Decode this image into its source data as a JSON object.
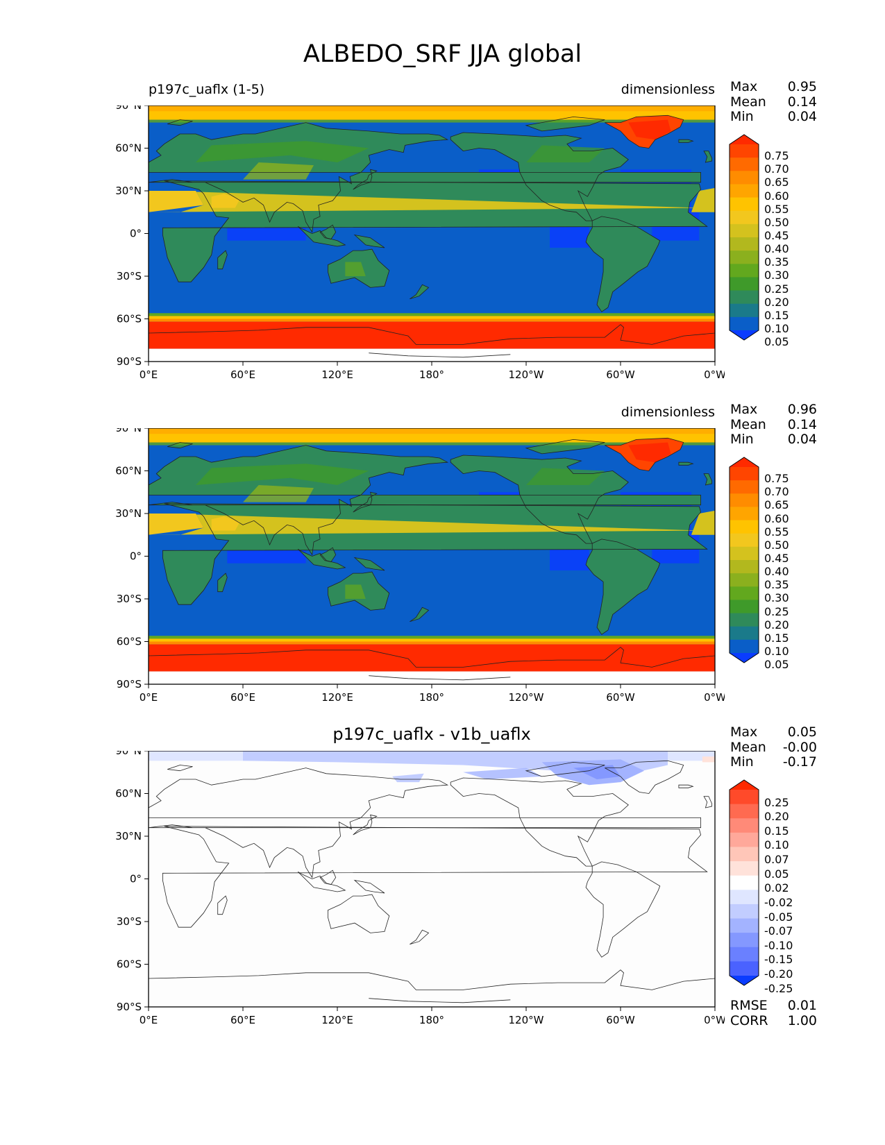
{
  "figure": {
    "title": "ALBEDO_SRF JJA global"
  },
  "axis_ticks": {
    "y": [
      "90°N",
      "60°N",
      "30°N",
      "0°",
      "30°S",
      "60°S",
      "90°S"
    ],
    "x": [
      "0°E",
      "60°E",
      "120°E",
      "180°",
      "120°W",
      "60°W",
      "0°W"
    ]
  },
  "panels": [
    {
      "left_title": "p197c_uaflx (1-5)",
      "center_title": "",
      "right_title": "dimensionless",
      "stats": {
        "max_label": "Max",
        "max": "0.95",
        "mean_label": "Mean",
        "mean": "0.14",
        "min_label": "Min",
        "min": "0.04"
      },
      "colorbar": {
        "labels": [
          "0.75",
          "0.70",
          "0.65",
          "0.60",
          "0.55",
          "0.50",
          "0.45",
          "0.40",
          "0.35",
          "0.30",
          "0.25",
          "0.20",
          "0.15",
          "0.10",
          "0.05"
        ],
        "colors_top_to_bottom": [
          "#ff2a00",
          "#ff4500",
          "#ff6a00",
          "#ff8c00",
          "#ffa500",
          "#ffc300",
          "#f2c71e",
          "#d4c21e",
          "#b2b81e",
          "#8bb01e",
          "#62a81e",
          "#3f9a2a",
          "#2f8a5a",
          "#1a7a8a",
          "#0a5ec8",
          "#0a3cff"
        ]
      }
    },
    {
      "left_title": "",
      "center_title": "",
      "right_title": "dimensionless",
      "stats": {
        "max_label": "Max",
        "max": "0.96",
        "mean_label": "Mean",
        "mean": "0.14",
        "min_label": "Min",
        "min": "0.04"
      },
      "colorbar": {
        "labels": [
          "0.75",
          "0.70",
          "0.65",
          "0.60",
          "0.55",
          "0.50",
          "0.45",
          "0.40",
          "0.35",
          "0.30",
          "0.25",
          "0.20",
          "0.15",
          "0.10",
          "0.05"
        ],
        "colors_top_to_bottom": [
          "#ff2a00",
          "#ff4500",
          "#ff6a00",
          "#ff8c00",
          "#ffa500",
          "#ffc300",
          "#f2c71e",
          "#d4c21e",
          "#b2b81e",
          "#8bb01e",
          "#62a81e",
          "#3f9a2a",
          "#2f8a5a",
          "#1a7a8a",
          "#0a5ec8",
          "#0a3cff"
        ]
      }
    },
    {
      "left_title": "",
      "center_title": "p197c_uaflx - v1b_uaflx",
      "right_title": "",
      "stats": {
        "max_label": "Max",
        "max": "0.05",
        "mean_label": "Mean",
        "mean": "-0.00",
        "min_label": "Min",
        "min": "-0.17"
      },
      "extra_stats": {
        "rmse_label": "RMSE",
        "rmse": "0.01",
        "corr_label": "CORR",
        "corr": "1.00"
      },
      "colorbar": {
        "labels": [
          "0.25",
          "0.20",
          "0.15",
          "0.10",
          "0.07",
          "0.05",
          "0.02",
          "-0.02",
          "-0.05",
          "-0.07",
          "-0.10",
          "-0.15",
          "-0.20",
          "-0.25"
        ],
        "colors_top_to_bottom": [
          "#ff2a00",
          "#ff4a2a",
          "#ff6a50",
          "#ff8a78",
          "#ffa89a",
          "#ffc6b8",
          "#ffe2da",
          "#ffffff",
          "#dfe6ff",
          "#c2cdff",
          "#a3b3ff",
          "#8498ff",
          "#6a80ff",
          "#4a62ff",
          "#0a3cff"
        ]
      }
    }
  ],
  "chart_data": [
    {
      "type": "heatmap",
      "title": "p197c_uaflx (1-5)",
      "units": "dimensionless",
      "xlim_deg": [
        0,
        360
      ],
      "ylim_deg": [
        -90,
        90
      ],
      "stats": {
        "max": 0.95,
        "mean": 0.14,
        "min": 0.04
      },
      "levels": [
        0.05,
        0.1,
        0.15,
        0.2,
        0.25,
        0.3,
        0.35,
        0.4,
        0.45,
        0.5,
        0.55,
        0.6,
        0.65,
        0.7,
        0.75
      ],
      "approx_values_by_region": {
        "open_ocean": 0.08,
        "tropical_ocean_low": 0.04,
        "vegetated_land": 0.15,
        "sahara_arabia": 0.45,
        "greenland": 0.8,
        "antarctica": 0.8,
        "arctic_band": 0.55,
        "sea_ice_edge_south": 0.5
      }
    },
    {
      "type": "heatmap",
      "units": "dimensionless",
      "xlim_deg": [
        0,
        360
      ],
      "ylim_deg": [
        -90,
        90
      ],
      "stats": {
        "max": 0.96,
        "mean": 0.14,
        "min": 0.04
      },
      "levels": [
        0.05,
        0.1,
        0.15,
        0.2,
        0.25,
        0.3,
        0.35,
        0.4,
        0.45,
        0.5,
        0.55,
        0.6,
        0.65,
        0.7,
        0.75
      ],
      "approx_values_by_region": {
        "open_ocean": 0.08,
        "tropical_ocean_low": 0.04,
        "vegetated_land": 0.15,
        "sahara_arabia": 0.45,
        "greenland": 0.8,
        "antarctica": 0.8,
        "arctic_band": 0.55,
        "sea_ice_edge_south": 0.5
      }
    },
    {
      "type": "heatmap",
      "title": "p197c_uaflx - v1b_uaflx",
      "xlim_deg": [
        0,
        360
      ],
      "ylim_deg": [
        -90,
        90
      ],
      "stats": {
        "max": 0.05,
        "mean": -0.0,
        "min": -0.17,
        "rmse": 0.01,
        "corr": 1.0
      },
      "levels": [
        -0.25,
        -0.2,
        -0.15,
        -0.1,
        -0.07,
        -0.05,
        -0.02,
        0.02,
        0.05,
        0.07,
        0.1,
        0.15,
        0.2,
        0.25
      ],
      "approx_values_by_region": {
        "most_of_globe": 0.0,
        "arctic_band": -0.05,
        "canadian_arctic": -0.1
      }
    }
  ]
}
